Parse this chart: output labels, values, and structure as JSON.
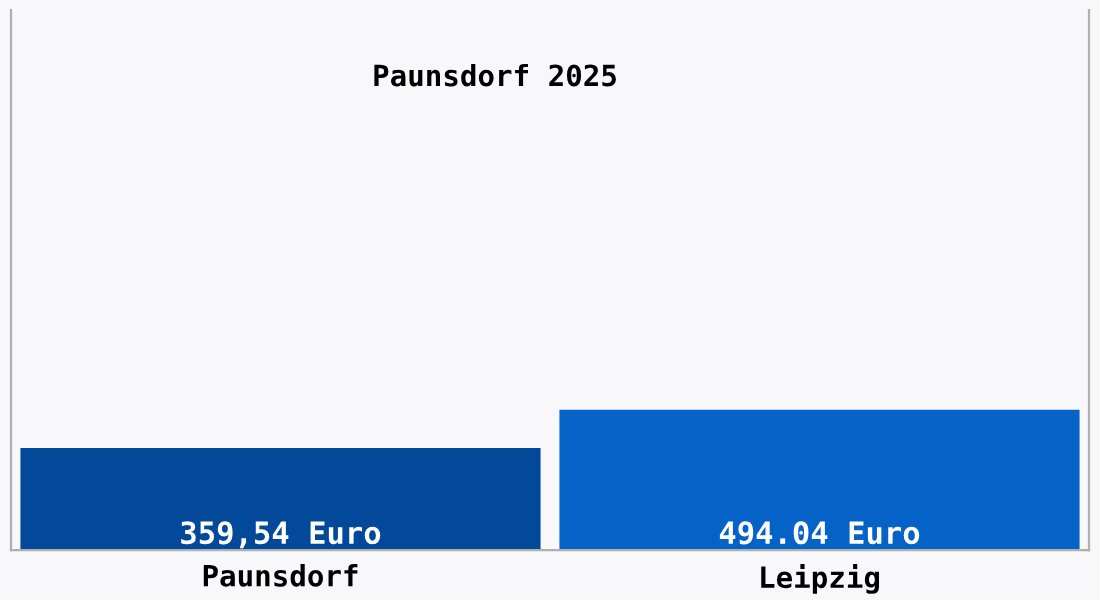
{
  "chart_data": {
    "type": "bar",
    "title": "Paunsdorf 2025",
    "categories": [
      "Paunsdorf",
      "Leipzig"
    ],
    "values": [
      359.54,
      494.04
    ],
    "colors": [
      "#03499a",
      "#0563c8"
    ],
    "value_labels": [
      "359,54 Euro",
      "494.04 Euro"
    ],
    "ylim": [
      0,
      1900
    ],
    "grid": false,
    "legend": false
  }
}
